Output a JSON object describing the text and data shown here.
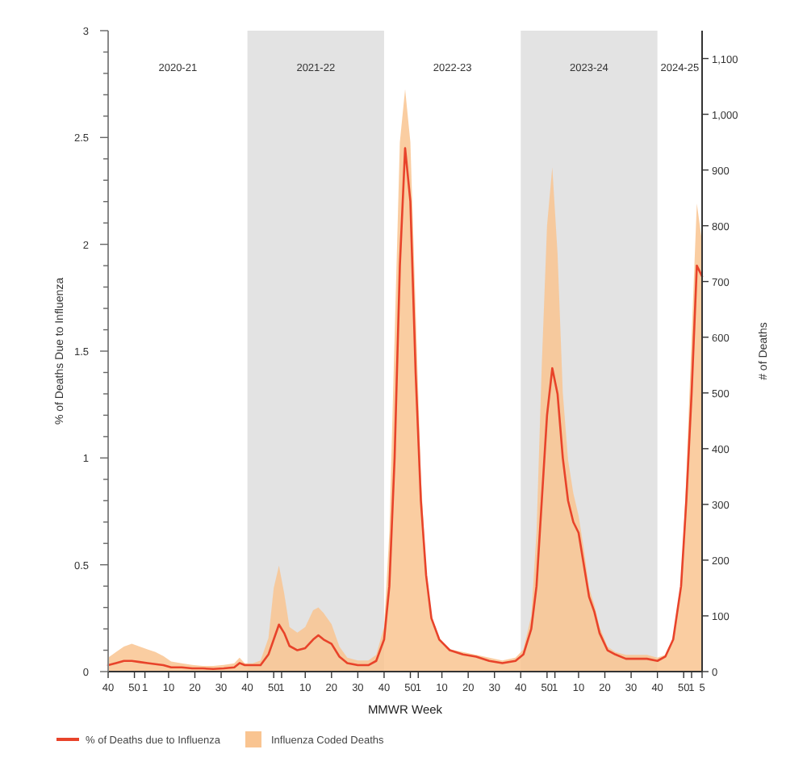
{
  "chart_data": {
    "type": "line",
    "xlabel": "MMWR Week",
    "ylabel": "% of Deaths Due to Influenza",
    "y2label": "# of Deaths",
    "x": [
      "2020-09-27",
      "2020-10-18",
      "2020-11-08",
      "2020-11-29",
      "2020-12-20",
      "2021-01-10",
      "2021-01-31",
      "2021-02-21",
      "2021-03-14",
      "2021-04-11",
      "2021-05-09",
      "2021-06-06",
      "2021-07-04",
      "2021-08-01",
      "2021-08-29",
      "2021-09-12",
      "2021-09-26",
      "2021-10-17",
      "2021-11-07",
      "2021-11-28",
      "2021-12-12",
      "2021-12-26",
      "2022-01-09",
      "2022-01-23",
      "2022-02-13",
      "2022-03-06",
      "2022-03-27",
      "2022-04-10",
      "2022-04-24",
      "2022-05-15",
      "2022-06-05",
      "2022-06-26",
      "2022-07-24",
      "2022-08-21",
      "2022-09-11",
      "2022-10-02",
      "2022-10-16",
      "2022-10-30",
      "2022-11-13",
      "2022-11-27",
      "2022-12-11",
      "2022-12-25",
      "2023-01-08",
      "2023-01-22",
      "2023-02-05",
      "2023-02-26",
      "2023-03-26",
      "2023-04-30",
      "2023-06-04",
      "2023-07-09",
      "2023-08-13",
      "2023-09-17",
      "2023-10-08",
      "2023-10-29",
      "2023-11-12",
      "2023-11-26",
      "2023-12-10",
      "2023-12-24",
      "2024-01-07",
      "2024-01-21",
      "2024-02-04",
      "2024-02-18",
      "2024-03-03",
      "2024-03-17",
      "2024-03-31",
      "2024-04-14",
      "2024-04-28",
      "2024-05-19",
      "2024-06-09",
      "2024-07-07",
      "2024-08-04",
      "2024-09-01",
      "2024-09-29",
      "2024-10-20",
      "2024-11-10",
      "2024-12-01",
      "2024-12-15",
      "2024-12-29",
      "2025-01-12",
      "2025-01-26"
    ],
    "series": [
      {
        "name": "Influenza Coded Deaths",
        "type": "area",
        "axis": "y2",
        "color": "#f9c491",
        "values": [
          25,
          35,
          45,
          50,
          45,
          40,
          35,
          28,
          18,
          15,
          12,
          10,
          10,
          12,
          15,
          25,
          15,
          15,
          20,
          60,
          150,
          190,
          140,
          80,
          70,
          80,
          110,
          115,
          105,
          85,
          45,
          25,
          20,
          20,
          30,
          80,
          250,
          600,
          950,
          1045,
          950,
          650,
          350,
          180,
          100,
          60,
          40,
          35,
          30,
          25,
          20,
          25,
          40,
          100,
          250,
          550,
          800,
          905,
          750,
          500,
          380,
          320,
          280,
          220,
          150,
          120,
          80,
          45,
          35,
          30,
          30,
          30,
          25,
          30,
          60,
          150,
          350,
          600,
          840,
          770
        ]
      },
      {
        "name": "% of Deaths due to Influenza",
        "type": "line",
        "color": "#e8432a",
        "values": [
          0.03,
          0.04,
          0.05,
          0.05,
          0.045,
          0.04,
          0.035,
          0.03,
          0.02,
          0.02,
          0.015,
          0.015,
          0.012,
          0.015,
          0.02,
          0.04,
          0.03,
          0.03,
          0.03,
          0.08,
          0.15,
          0.22,
          0.18,
          0.12,
          0.1,
          0.11,
          0.15,
          0.17,
          0.15,
          0.13,
          0.07,
          0.04,
          0.03,
          0.03,
          0.05,
          0.15,
          0.4,
          1.0,
          1.9,
          2.45,
          2.2,
          1.4,
          0.8,
          0.45,
          0.25,
          0.15,
          0.1,
          0.08,
          0.07,
          0.05,
          0.04,
          0.05,
          0.08,
          0.2,
          0.4,
          0.8,
          1.2,
          1.42,
          1.3,
          1.0,
          0.8,
          0.7,
          0.65,
          0.5,
          0.35,
          0.28,
          0.18,
          0.1,
          0.08,
          0.06,
          0.06,
          0.06,
          0.05,
          0.07,
          0.15,
          0.4,
          0.8,
          1.3,
          1.9,
          1.85
        ]
      }
    ],
    "xlim": [
      "2020-09-27",
      "2025-01-26"
    ],
    "xticks": [
      {
        "value": "2020-09-27",
        "label": "40"
      },
      {
        "value": "2020-12-06",
        "label": "50"
      },
      {
        "value": "2021-01-03",
        "label": "1"
      },
      {
        "value": "2021-03-07",
        "label": "10"
      },
      {
        "value": "2021-05-16",
        "label": "20"
      },
      {
        "value": "2021-07-25",
        "label": "30"
      },
      {
        "value": "2021-10-03",
        "label": "40"
      },
      {
        "value": "2021-12-12",
        "label": "50"
      },
      {
        "value": "2022-01-02",
        "label": "1"
      },
      {
        "value": "2022-03-06",
        "label": "10"
      },
      {
        "value": "2022-05-15",
        "label": "20"
      },
      {
        "value": "2022-07-24",
        "label": "30"
      },
      {
        "value": "2022-10-02",
        "label": "40"
      },
      {
        "value": "2022-12-11",
        "label": "50"
      },
      {
        "value": "2023-01-01",
        "label": "1"
      },
      {
        "value": "2023-03-05",
        "label": "10"
      },
      {
        "value": "2023-05-14",
        "label": "20"
      },
      {
        "value": "2023-07-23",
        "label": "30"
      },
      {
        "value": "2023-10-01",
        "label": "40"
      },
      {
        "value": "2023-12-10",
        "label": "50"
      },
      {
        "value": "2023-12-31",
        "label": "1"
      },
      {
        "value": "2024-03-03",
        "label": "10"
      },
      {
        "value": "2024-05-12",
        "label": "20"
      },
      {
        "value": "2024-07-21",
        "label": "30"
      },
      {
        "value": "2024-09-29",
        "label": "40"
      },
      {
        "value": "2024-12-08",
        "label": "50"
      },
      {
        "value": "2024-12-29",
        "label": "1"
      },
      {
        "value": "2025-01-26",
        "label": "5"
      }
    ],
    "ylim": [
      0,
      3
    ],
    "yticks": [
      0,
      {
        "value": 0.1,
        "label": null
      },
      {
        "value": 0.2,
        "label": null
      },
      {
        "value": 0.3,
        "label": null
      },
      {
        "value": 0.4,
        "label": null
      },
      0.5,
      {
        "value": 0.6,
        "label": null
      },
      {
        "value": 0.7,
        "label": null
      },
      {
        "value": 0.8,
        "label": null
      },
      {
        "value": 0.9,
        "label": null
      },
      1,
      {
        "value": 1.1,
        "label": null
      },
      {
        "value": 1.2,
        "label": null
      },
      {
        "value": 1.3,
        "label": null
      },
      {
        "value": 1.4,
        "label": null
      },
      1.5,
      {
        "value": 1.6,
        "label": null
      },
      {
        "value": 1.7,
        "label": null
      },
      {
        "value": 1.8,
        "label": null
      },
      {
        "value": 1.9,
        "label": null
      },
      2,
      {
        "value": 2.1,
        "label": null
      },
      {
        "value": 2.2,
        "label": null
      },
      {
        "value": 2.3,
        "label": null
      },
      {
        "value": 2.4,
        "label": null
      },
      2.5,
      {
        "value": 2.6,
        "label": null
      },
      {
        "value": 2.7,
        "label": null
      },
      {
        "value": 2.8,
        "label": null
      },
      {
        "value": 2.9,
        "label": null
      },
      3
    ],
    "y2lim": [
      0,
      1150
    ],
    "y2ticks": [
      0,
      100,
      200,
      300,
      400,
      500,
      600,
      700,
      800,
      900,
      {
        "value": 1000,
        "label": "1,000"
      },
      {
        "value": 1100,
        "label": "1,100"
      }
    ],
    "bands": [
      {
        "axis": "x",
        "from": "2021-10-03",
        "to": "2022-10-02",
        "label": "2021-22",
        "color": "#e3e3e3"
      },
      {
        "axis": "x",
        "from": "2023-10-01",
        "to": "2024-09-29",
        "label": "2023-24",
        "color": "#e3e3e3"
      }
    ],
    "annotations": [
      "2020-21",
      "2022-23",
      "2024-25"
    ],
    "legend": "bottom"
  }
}
